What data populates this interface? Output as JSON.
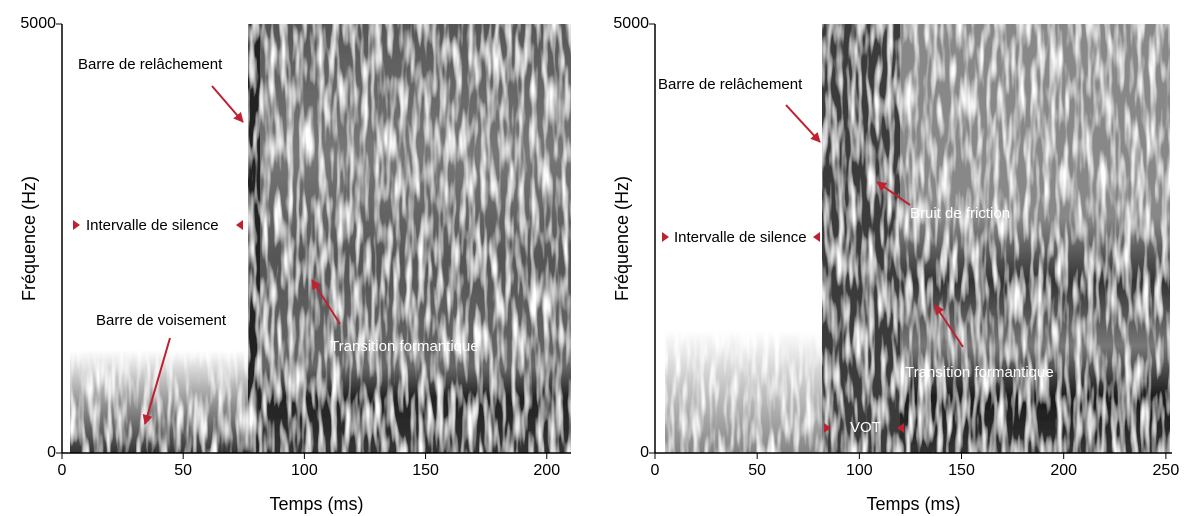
{
  "chart_data": [
    {
      "type": "spectrogram",
      "xlabel": "Temps (ms)",
      "ylabel": "Fréquence (Hz)",
      "xlim": [
        0,
        210
      ],
      "xticks": [
        0,
        50,
        100,
        150,
        200
      ],
      "ylim": [
        0,
        5000
      ],
      "yticks": [
        0,
        5000
      ],
      "annotations": [
        "Barre de relâchement",
        "Intervalle de silence",
        "Barre de voisement",
        "Transition formantique"
      ]
    },
    {
      "type": "spectrogram",
      "xlabel": "Temps (ms)",
      "ylabel": "Fréquence (Hz)",
      "xlim": [
        0,
        253
      ],
      "xticks": [
        0,
        50,
        100,
        150,
        200,
        250
      ],
      "ylim": [
        0,
        5000
      ],
      "yticks": [
        0,
        5000
      ],
      "annotations": [
        "Barre de relâchement",
        "Bruit de friction",
        "Intervalle de silence",
        "Transition formantique",
        "VOT"
      ]
    }
  ]
}
